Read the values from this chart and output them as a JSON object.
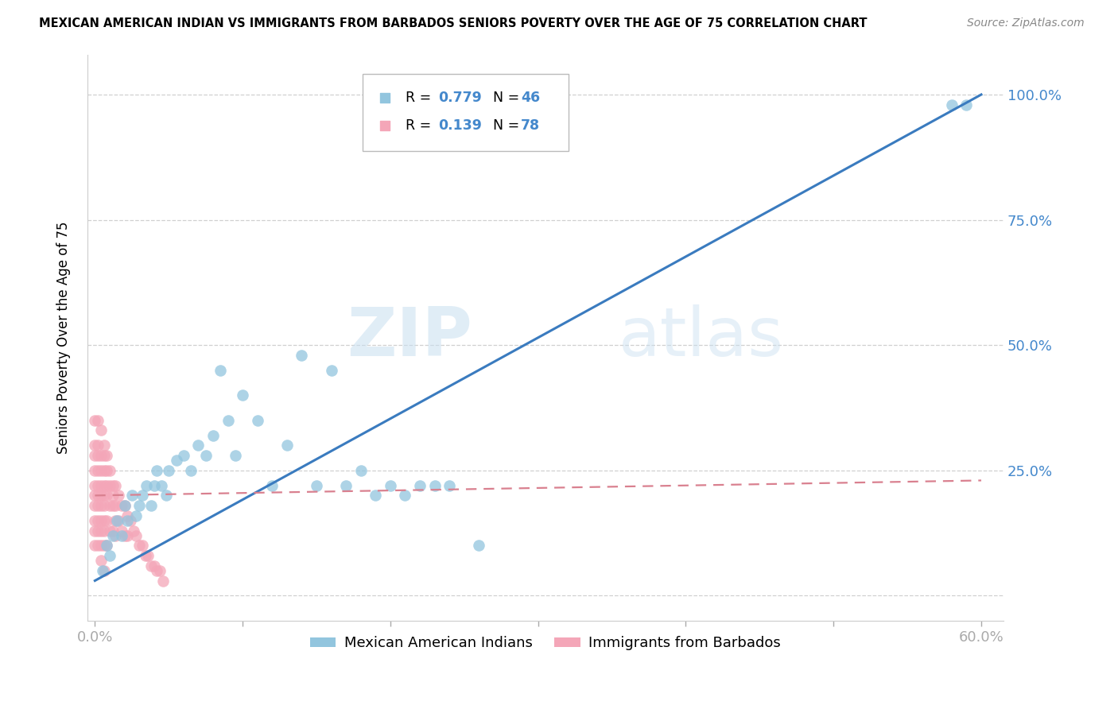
{
  "title": "MEXICAN AMERICAN INDIAN VS IMMIGRANTS FROM BARBADOS SENIORS POVERTY OVER THE AGE OF 75 CORRELATION CHART",
  "source": "Source: ZipAtlas.com",
  "ylabel": "Seniors Poverty Over the Age of 75",
  "legend_R1": "R = 0.779",
  "legend_N1": "N = 46",
  "legend_R2": "R = 0.139",
  "legend_N2": "N = 78",
  "blue_color": "#92c5de",
  "pink_color": "#f4a6b8",
  "blue_line_color": "#3a7bbf",
  "pink_line_color": "#d9808f",
  "grid_color": "#d0d0d0",
  "watermark_zip": "ZIP",
  "watermark_atlas": "atlas",
  "blue_label": "Mexican American Indians",
  "pink_label": "Immigrants from Barbados",
  "blue_x": [
    0.005,
    0.008,
    0.01,
    0.012,
    0.015,
    0.018,
    0.02,
    0.022,
    0.025,
    0.028,
    0.03,
    0.032,
    0.035,
    0.038,
    0.04,
    0.042,
    0.045,
    0.048,
    0.05,
    0.055,
    0.06,
    0.065,
    0.07,
    0.075,
    0.08,
    0.085,
    0.09,
    0.095,
    0.1,
    0.11,
    0.12,
    0.13,
    0.14,
    0.15,
    0.16,
    0.17,
    0.18,
    0.19,
    0.2,
    0.21,
    0.22,
    0.23,
    0.24,
    0.26,
    0.58,
    0.59
  ],
  "blue_y": [
    0.05,
    0.1,
    0.08,
    0.12,
    0.15,
    0.12,
    0.18,
    0.15,
    0.2,
    0.16,
    0.18,
    0.2,
    0.22,
    0.18,
    0.22,
    0.25,
    0.22,
    0.2,
    0.25,
    0.27,
    0.28,
    0.25,
    0.3,
    0.28,
    0.32,
    0.45,
    0.35,
    0.28,
    0.4,
    0.35,
    0.22,
    0.3,
    0.48,
    0.22,
    0.45,
    0.22,
    0.25,
    0.2,
    0.22,
    0.2,
    0.22,
    0.22,
    0.22,
    0.1,
    0.98,
    0.98
  ],
  "pink_x": [
    0.0,
    0.0,
    0.0,
    0.0,
    0.0,
    0.0,
    0.0,
    0.0,
    0.0,
    0.0,
    0.002,
    0.002,
    0.002,
    0.002,
    0.002,
    0.002,
    0.002,
    0.002,
    0.002,
    0.002,
    0.004,
    0.004,
    0.004,
    0.004,
    0.004,
    0.004,
    0.004,
    0.004,
    0.004,
    0.004,
    0.006,
    0.006,
    0.006,
    0.006,
    0.006,
    0.006,
    0.006,
    0.006,
    0.006,
    0.006,
    0.008,
    0.008,
    0.008,
    0.008,
    0.008,
    0.008,
    0.01,
    0.01,
    0.01,
    0.01,
    0.012,
    0.012,
    0.012,
    0.012,
    0.014,
    0.014,
    0.014,
    0.014,
    0.016,
    0.016,
    0.018,
    0.018,
    0.02,
    0.02,
    0.022,
    0.022,
    0.024,
    0.026,
    0.028,
    0.03,
    0.032,
    0.034,
    0.036,
    0.038,
    0.04,
    0.042,
    0.044,
    0.046
  ],
  "pink_y": [
    0.35,
    0.3,
    0.28,
    0.25,
    0.22,
    0.2,
    0.18,
    0.15,
    0.13,
    0.1,
    0.35,
    0.3,
    0.28,
    0.25,
    0.22,
    0.2,
    0.18,
    0.15,
    0.13,
    0.1,
    0.33,
    0.28,
    0.25,
    0.22,
    0.2,
    0.18,
    0.15,
    0.13,
    0.1,
    0.07,
    0.3,
    0.28,
    0.25,
    0.22,
    0.2,
    0.18,
    0.15,
    0.13,
    0.1,
    0.05,
    0.28,
    0.25,
    0.22,
    0.2,
    0.15,
    0.1,
    0.25,
    0.22,
    0.18,
    0.13,
    0.22,
    0.2,
    0.18,
    0.13,
    0.22,
    0.18,
    0.15,
    0.12,
    0.2,
    0.15,
    0.18,
    0.13,
    0.18,
    0.12,
    0.16,
    0.12,
    0.15,
    0.13,
    0.12,
    0.1,
    0.1,
    0.08,
    0.08,
    0.06,
    0.06,
    0.05,
    0.05,
    0.03
  ],
  "blue_line_x": [
    0.0,
    0.6
  ],
  "blue_line_y": [
    0.03,
    1.0
  ],
  "pink_line_x": [
    0.0,
    0.6
  ],
  "pink_line_y": [
    0.2,
    0.23
  ],
  "xlim": [
    -0.005,
    0.615
  ],
  "ylim": [
    -0.05,
    1.08
  ],
  "xticks": [
    0.0,
    0.1,
    0.2,
    0.3,
    0.4,
    0.5,
    0.6
  ],
  "yticks": [
    0.0,
    0.25,
    0.5,
    0.75,
    1.0
  ],
  "xticklabels": [
    "0.0%",
    "",
    "",
    "",
    "",
    "",
    "60.0%"
  ],
  "yticklabels_right": [
    "",
    "25.0%",
    "50.0%",
    "75.0%",
    "100.0%"
  ]
}
